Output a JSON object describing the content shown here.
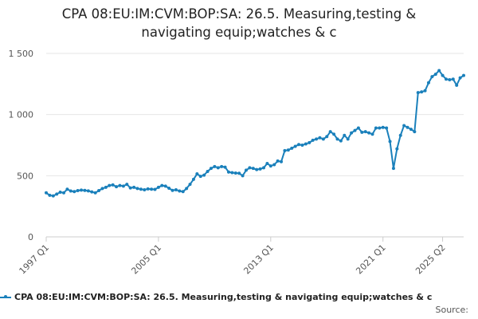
{
  "chart_data": {
    "type": "line",
    "title_lines": [
      "CPA 08:EU:IM:CVM:BOP:SA: 26.5. Measuring,testing &",
      "navigating equip;watches & c"
    ],
    "series_name": "CPA 08:EU:IM:CVM:BOP:SA: 26.5. Measuring,testing & navigating equip;watches & c",
    "source_label": "Source:",
    "color": "#1a80bb",
    "ylim": [
      0,
      1500
    ],
    "yticks": [
      0,
      500,
      1000,
      1500
    ],
    "ytick_labels": [
      "0",
      "500",
      "1 000",
      "1 500"
    ],
    "xticks": [
      {
        "label": "1997 Q1",
        "index": 0
      },
      {
        "label": "2005 Q1",
        "index": 32
      },
      {
        "label": "2013 Q1",
        "index": 64
      },
      {
        "label": "2021 Q1",
        "index": 96
      },
      {
        "label": "2025 Q2",
        "index": 113
      }
    ],
    "start_period": "1997 Q1",
    "values": [
      360,
      340,
      335,
      350,
      365,
      360,
      390,
      375,
      370,
      378,
      382,
      380,
      376,
      368,
      360,
      378,
      395,
      405,
      420,
      425,
      410,
      420,
      415,
      430,
      400,
      405,
      395,
      390,
      385,
      392,
      390,
      388,
      405,
      420,
      415,
      398,
      380,
      385,
      375,
      370,
      395,
      430,
      470,
      515,
      495,
      505,
      535,
      560,
      575,
      565,
      575,
      570,
      530,
      525,
      522,
      520,
      500,
      545,
      565,
      560,
      550,
      555,
      565,
      600,
      580,
      590,
      620,
      615,
      705,
      710,
      725,
      740,
      755,
      750,
      760,
      770,
      790,
      800,
      810,
      800,
      820,
      860,
      840,
      800,
      785,
      830,
      800,
      850,
      870,
      890,
      855,
      860,
      850,
      840,
      890,
      890,
      895,
      890,
      780,
      560,
      720,
      830,
      910,
      895,
      880,
      860,
      1180,
      1185,
      1195,
      1260,
      1310,
      1330,
      1360,
      1320,
      1290,
      1285,
      1290,
      1240,
      1300,
      1320
    ]
  }
}
